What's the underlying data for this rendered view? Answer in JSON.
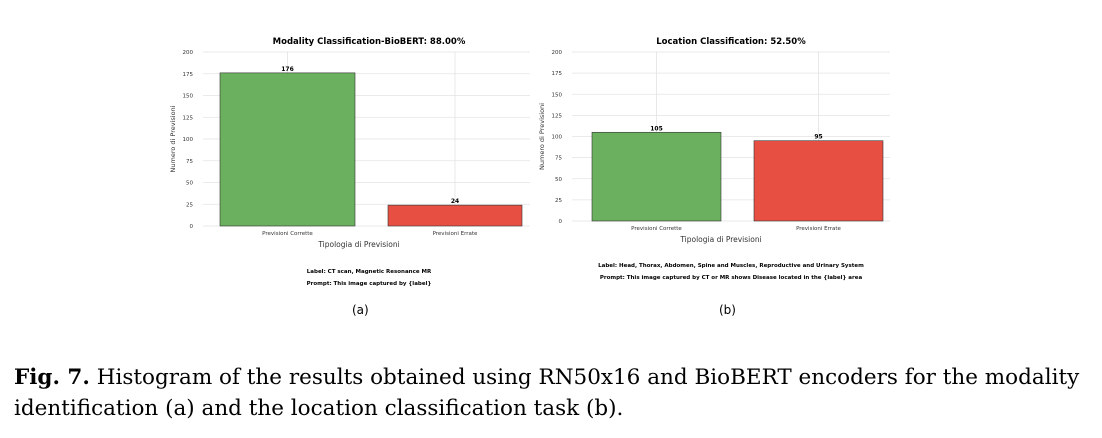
{
  "chart_data": [
    {
      "type": "bar",
      "title": "Modality Classification-BioBERT: 88.00%",
      "xlabel": "Tipologia di Previsioni",
      "ylabel": "Numero di Previsioni",
      "categories": [
        "Previsioni Corrette",
        "Previsioni Errate"
      ],
      "values": [
        176,
        24
      ],
      "bar_colors": [
        "#6ab05e",
        "#e64f42"
      ],
      "ylim": [
        0,
        200
      ],
      "yticks": [
        0,
        25,
        50,
        75,
        100,
        125,
        150,
        175,
        200
      ],
      "grid": true,
      "legend": "none",
      "notes": [
        "Label: CT scan, Magnetic Resonance MR",
        "Prompt: This image captured by {label}"
      ]
    },
    {
      "type": "bar",
      "title": "Location Classification: 52.50%",
      "xlabel": "Tipologia di Previsioni",
      "ylabel": "Numero di Previsioni",
      "categories": [
        "Previsioni Corrette",
        "Previsioni Errate"
      ],
      "values": [
        105,
        95
      ],
      "bar_colors": [
        "#6ab05e",
        "#e64f42"
      ],
      "ylim": [
        0,
        200
      ],
      "yticks": [
        0,
        25,
        50,
        75,
        100,
        125,
        150,
        175,
        200
      ],
      "grid": true,
      "legend": "none",
      "notes": [
        "Label: Head, Thorax, Abdomen, Spine and Muscles, Reproductive and Urinary System",
        "Prompt: This image captured by CT or MR shows Disease located in the {label} area"
      ]
    }
  ],
  "subfigures": [
    "(a)",
    "(b)"
  ],
  "caption": {
    "label": "Fig. 7.",
    "text": "Histogram of the results obtained using RN50x16 and BioBERT encoders for the modality identification (a) and the location classification task (b)."
  }
}
